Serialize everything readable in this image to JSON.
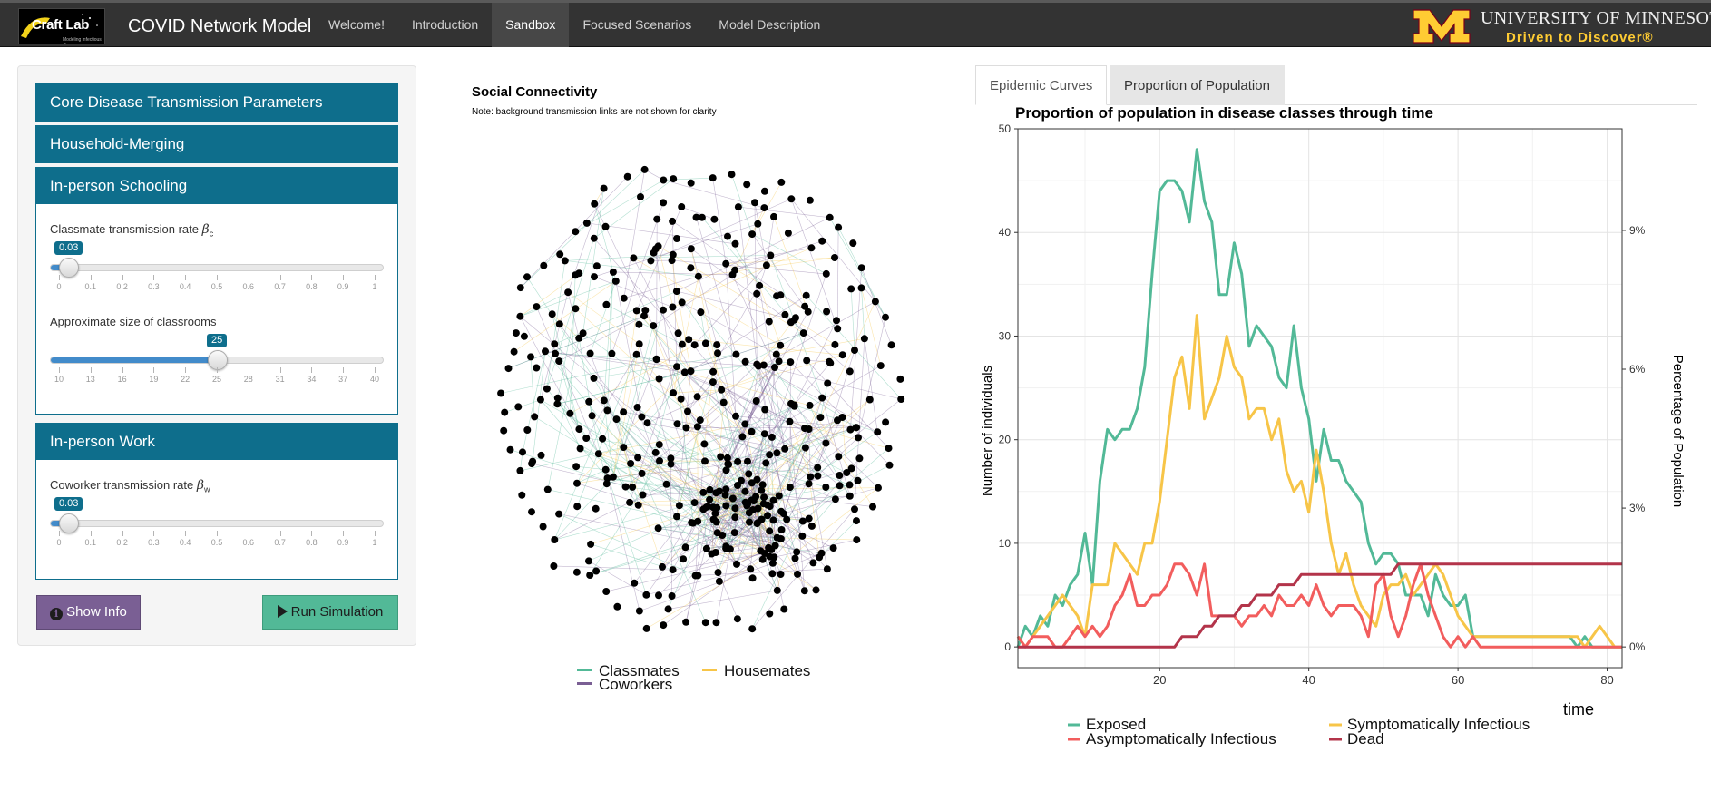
{
  "navbar": {
    "logo_text": "Craft Lab",
    "logo_sub": "Modeling infectious disease",
    "brand": "COVID Network Model",
    "items": [
      {
        "label": "Welcome!",
        "active": false
      },
      {
        "label": "Introduction",
        "active": false
      },
      {
        "label": "Sandbox",
        "active": true
      },
      {
        "label": "Focused Scenarios",
        "active": false
      },
      {
        "label": "Model Description",
        "active": false
      }
    ],
    "umn_line1": "UNIVERSITY OF MINNESOTA",
    "umn_line2": "Driven to Discover®",
    "umn_colors": {
      "maroon": "#7a0019",
      "gold": "#ffcc33"
    }
  },
  "sidebar": {
    "panels": {
      "core": "Core Disease Transmission Parameters",
      "household": "Household-Merging",
      "schooling": "In-person Schooling",
      "work": "In-person Work"
    },
    "classmate_rate": {
      "label": "Classmate transmission rate",
      "symbol": "β",
      "sub": "c",
      "value": "0.03",
      "min": 0,
      "max": 1,
      "current": 0.03,
      "ticks": [
        "0",
        "0.1",
        "0.2",
        "0.3",
        "0.4",
        "0.5",
        "0.6",
        "0.7",
        "0.8",
        "0.9",
        "1"
      ]
    },
    "classroom_size": {
      "label": "Approximate size of classrooms",
      "value": "25",
      "min": 10,
      "max": 40,
      "current": 25,
      "ticks": [
        "10",
        "13",
        "16",
        "19",
        "22",
        "25",
        "28",
        "31",
        "34",
        "37",
        "40"
      ]
    },
    "coworker_rate": {
      "label": "Coworker transmission rate",
      "symbol": "β",
      "sub": "w",
      "value": "0.03",
      "min": 0,
      "max": 1,
      "current": 0.03,
      "ticks": [
        "0",
        "0.1",
        "0.2",
        "0.3",
        "0.4",
        "0.5",
        "0.6",
        "0.7",
        "0.8",
        "0.9",
        "1"
      ]
    },
    "show_info_label": "Show Info",
    "run_label": "Run Simulation",
    "info_icon": "info-circle-icon",
    "play_icon": "play-icon",
    "colors": {
      "panel": "#0e6e8c",
      "info_btn": "#7a5f94",
      "run_btn": "#52b997"
    }
  },
  "network": {
    "title": "Social Connectivity",
    "note": "Note: background transmission links are not shown for clarity",
    "legend": [
      {
        "label": "Classmates",
        "color": "#52b997"
      },
      {
        "label": "Housemates",
        "color": "#f7c548"
      },
      {
        "label": "Coworkers",
        "color": "#7a5f94"
      }
    ]
  },
  "tabs": {
    "epidemic": "Epidemic Curves",
    "proportion": "Proportion of Population"
  },
  "chart_data": {
    "type": "line",
    "title": "Proportion of population in disease classes through time",
    "xlabel": "time",
    "ylabel": "Number of individuals",
    "y2label": "Percentage of Population",
    "xlim": [
      1,
      82
    ],
    "ylim": [
      -2,
      50
    ],
    "xticks": [
      20,
      40,
      60,
      80
    ],
    "yticks": [
      0,
      10,
      20,
      30,
      40,
      50
    ],
    "y2ticks": [
      {
        "label": "0%",
        "y": 0
      },
      {
        "label": "3%",
        "y": 13.4
      },
      {
        "label": "6%",
        "y": 26.8
      },
      {
        "label": "9%",
        "y": 40.2
      }
    ],
    "grid": true,
    "legend_position": "bottom",
    "series": [
      {
        "name": "Exposed",
        "color": "#52b997",
        "points": [
          [
            1,
            0
          ],
          [
            2,
            2
          ],
          [
            3,
            1
          ],
          [
            4,
            3
          ],
          [
            5,
            2
          ],
          [
            6,
            5
          ],
          [
            7,
            4
          ],
          [
            8,
            6
          ],
          [
            9,
            7
          ],
          [
            10,
            11
          ],
          [
            11,
            6
          ],
          [
            12,
            16
          ],
          [
            13,
            21
          ],
          [
            14,
            20
          ],
          [
            15,
            21
          ],
          [
            16,
            21
          ],
          [
            17,
            23
          ],
          [
            18,
            27
          ],
          [
            19,
            36
          ],
          [
            20,
            44
          ],
          [
            21,
            45
          ],
          [
            22,
            45
          ],
          [
            23,
            44
          ],
          [
            24,
            41
          ],
          [
            25,
            48
          ],
          [
            26,
            43
          ],
          [
            27,
            41
          ],
          [
            28,
            34
          ],
          [
            29,
            34
          ],
          [
            30,
            39
          ],
          [
            31,
            36
          ],
          [
            32,
            29
          ],
          [
            33,
            31
          ],
          [
            34,
            30
          ],
          [
            35,
            29
          ],
          [
            36,
            26
          ],
          [
            37,
            25
          ],
          [
            38,
            31
          ],
          [
            39,
            25
          ],
          [
            40,
            22
          ],
          [
            41,
            16
          ],
          [
            42,
            21
          ],
          [
            43,
            18
          ],
          [
            44,
            18
          ],
          [
            45,
            16
          ],
          [
            46,
            15
          ],
          [
            47,
            14
          ],
          [
            48,
            10
          ],
          [
            49,
            8
          ],
          [
            50,
            9
          ],
          [
            51,
            9
          ],
          [
            52,
            8
          ],
          [
            53,
            5
          ],
          [
            54,
            5
          ],
          [
            55,
            5
          ],
          [
            56,
            3
          ],
          [
            57,
            7
          ],
          [
            58,
            5
          ],
          [
            59,
            4
          ],
          [
            60,
            4
          ],
          [
            61,
            5
          ],
          [
            62,
            1
          ],
          [
            63,
            1
          ],
          [
            64,
            1
          ],
          [
            65,
            1
          ],
          [
            66,
            1
          ],
          [
            67,
            1
          ],
          [
            68,
            1
          ],
          [
            69,
            1
          ],
          [
            70,
            1
          ],
          [
            71,
            1
          ],
          [
            72,
            1
          ],
          [
            73,
            1
          ],
          [
            74,
            1
          ],
          [
            75,
            1
          ],
          [
            76,
            0
          ],
          [
            77,
            1
          ],
          [
            78,
            0
          ],
          [
            79,
            0
          ],
          [
            80,
            0
          ],
          [
            81,
            0
          ],
          [
            82,
            0
          ]
        ]
      },
      {
        "name": "Symptomatically Infectious",
        "color": "#f7c548",
        "points": [
          [
            1,
            1
          ],
          [
            2,
            0
          ],
          [
            3,
            1
          ],
          [
            4,
            2
          ],
          [
            5,
            3
          ],
          [
            6,
            4
          ],
          [
            7,
            5
          ],
          [
            8,
            4
          ],
          [
            9,
            3
          ],
          [
            10,
            1
          ],
          [
            11,
            6
          ],
          [
            12,
            6
          ],
          [
            13,
            6
          ],
          [
            14,
            10
          ],
          [
            15,
            9
          ],
          [
            16,
            8
          ],
          [
            17,
            7
          ],
          [
            18,
            10
          ],
          [
            19,
            10
          ],
          [
            20,
            14
          ],
          [
            21,
            20
          ],
          [
            22,
            26
          ],
          [
            23,
            28
          ],
          [
            24,
            23
          ],
          [
            25,
            32
          ],
          [
            26,
            22
          ],
          [
            27,
            24
          ],
          [
            28,
            26
          ],
          [
            29,
            30
          ],
          [
            30,
            27
          ],
          [
            31,
            26
          ],
          [
            32,
            22
          ],
          [
            33,
            23
          ],
          [
            34,
            23
          ],
          [
            35,
            20
          ],
          [
            36,
            22
          ],
          [
            37,
            17
          ],
          [
            38,
            15
          ],
          [
            39,
            16
          ],
          [
            40,
            13
          ],
          [
            41,
            19
          ],
          [
            42,
            15
          ],
          [
            43,
            10
          ],
          [
            44,
            7
          ],
          [
            45,
            9
          ],
          [
            46,
            6
          ],
          [
            47,
            4
          ],
          [
            48,
            3
          ],
          [
            49,
            2
          ],
          [
            50,
            5
          ],
          [
            51,
            6
          ],
          [
            52,
            6
          ],
          [
            53,
            7
          ],
          [
            54,
            5
          ],
          [
            55,
            6
          ],
          [
            56,
            7
          ],
          [
            57,
            8
          ],
          [
            58,
            7
          ],
          [
            59,
            5
          ],
          [
            60,
            3
          ],
          [
            61,
            2
          ],
          [
            62,
            1
          ],
          [
            63,
            1
          ],
          [
            64,
            1
          ],
          [
            65,
            1
          ],
          [
            66,
            1
          ],
          [
            67,
            1
          ],
          [
            68,
            1
          ],
          [
            69,
            1
          ],
          [
            70,
            1
          ],
          [
            71,
            1
          ],
          [
            72,
            1
          ],
          [
            73,
            1
          ],
          [
            74,
            1
          ],
          [
            75,
            1
          ],
          [
            76,
            1
          ],
          [
            77,
            0
          ],
          [
            78,
            1
          ],
          [
            79,
            2
          ],
          [
            80,
            1
          ],
          [
            81,
            0
          ],
          [
            82,
            0
          ]
        ]
      },
      {
        "name": "Asymptomatically Infectious",
        "color": "#f25d5d",
        "points": [
          [
            1,
            1
          ],
          [
            2,
            0
          ],
          [
            3,
            1
          ],
          [
            4,
            1
          ],
          [
            5,
            1
          ],
          [
            6,
            0
          ],
          [
            7,
            0
          ],
          [
            8,
            1
          ],
          [
            9,
            2
          ],
          [
            10,
            1
          ],
          [
            11,
            2
          ],
          [
            12,
            1
          ],
          [
            13,
            2
          ],
          [
            14,
            4
          ],
          [
            15,
            5
          ],
          [
            16,
            7
          ],
          [
            17,
            4
          ],
          [
            18,
            4
          ],
          [
            19,
            5
          ],
          [
            20,
            5
          ],
          [
            21,
            6
          ],
          [
            22,
            8
          ],
          [
            23,
            8
          ],
          [
            24,
            7
          ],
          [
            25,
            5
          ],
          [
            26,
            8
          ],
          [
            27,
            3
          ],
          [
            28,
            3
          ],
          [
            29,
            3
          ],
          [
            30,
            3
          ],
          [
            31,
            2
          ],
          [
            32,
            3
          ],
          [
            33,
            3
          ],
          [
            34,
            4
          ],
          [
            35,
            3
          ],
          [
            36,
            5
          ],
          [
            37,
            4
          ],
          [
            38,
            4
          ],
          [
            39,
            5
          ],
          [
            40,
            4
          ],
          [
            41,
            6
          ],
          [
            42,
            4
          ],
          [
            43,
            3
          ],
          [
            44,
            4
          ],
          [
            45,
            4
          ],
          [
            46,
            4
          ],
          [
            47,
            3
          ],
          [
            48,
            1
          ],
          [
            49,
            6
          ],
          [
            50,
            7
          ],
          [
            51,
            3
          ],
          [
            52,
            1
          ],
          [
            53,
            3
          ],
          [
            54,
            6
          ],
          [
            55,
            8
          ],
          [
            56,
            5
          ],
          [
            57,
            3
          ],
          [
            58,
            1
          ],
          [
            59,
            0
          ],
          [
            60,
            1
          ],
          [
            61,
            0
          ],
          [
            62,
            1
          ],
          [
            63,
            0
          ],
          [
            64,
            0
          ],
          [
            65,
            0
          ],
          [
            66,
            0
          ],
          [
            67,
            0
          ],
          [
            68,
            0
          ],
          [
            69,
            0
          ],
          [
            70,
            0
          ],
          [
            71,
            0
          ],
          [
            72,
            0
          ],
          [
            73,
            0
          ],
          [
            74,
            0
          ],
          [
            75,
            0
          ],
          [
            76,
            0
          ],
          [
            77,
            0
          ],
          [
            78,
            0
          ],
          [
            79,
            0
          ],
          [
            80,
            0
          ],
          [
            81,
            0
          ],
          [
            82,
            0
          ]
        ]
      },
      {
        "name": "Dead",
        "color": "#b3344a",
        "points": [
          [
            1,
            0
          ],
          [
            20,
            0
          ],
          [
            22,
            0
          ],
          [
            23,
            1
          ],
          [
            24,
            1
          ],
          [
            25,
            1
          ],
          [
            26,
            2
          ],
          [
            27,
            2
          ],
          [
            28,
            3
          ],
          [
            29,
            3
          ],
          [
            30,
            3
          ],
          [
            31,
            4
          ],
          [
            32,
            4
          ],
          [
            33,
            5
          ],
          [
            34,
            5
          ],
          [
            35,
            5
          ],
          [
            36,
            6
          ],
          [
            37,
            6
          ],
          [
            38,
            6
          ],
          [
            39,
            7
          ],
          [
            40,
            7
          ],
          [
            41,
            7
          ],
          [
            42,
            7
          ],
          [
            43,
            7
          ],
          [
            44,
            7
          ],
          [
            45,
            7
          ],
          [
            46,
            7
          ],
          [
            47,
            7
          ],
          [
            48,
            7
          ],
          [
            49,
            7
          ],
          [
            50,
            7
          ],
          [
            51,
            7
          ],
          [
            52,
            8
          ],
          [
            53,
            8
          ],
          [
            54,
            8
          ],
          [
            55,
            8
          ],
          [
            82,
            8
          ]
        ]
      }
    ]
  }
}
